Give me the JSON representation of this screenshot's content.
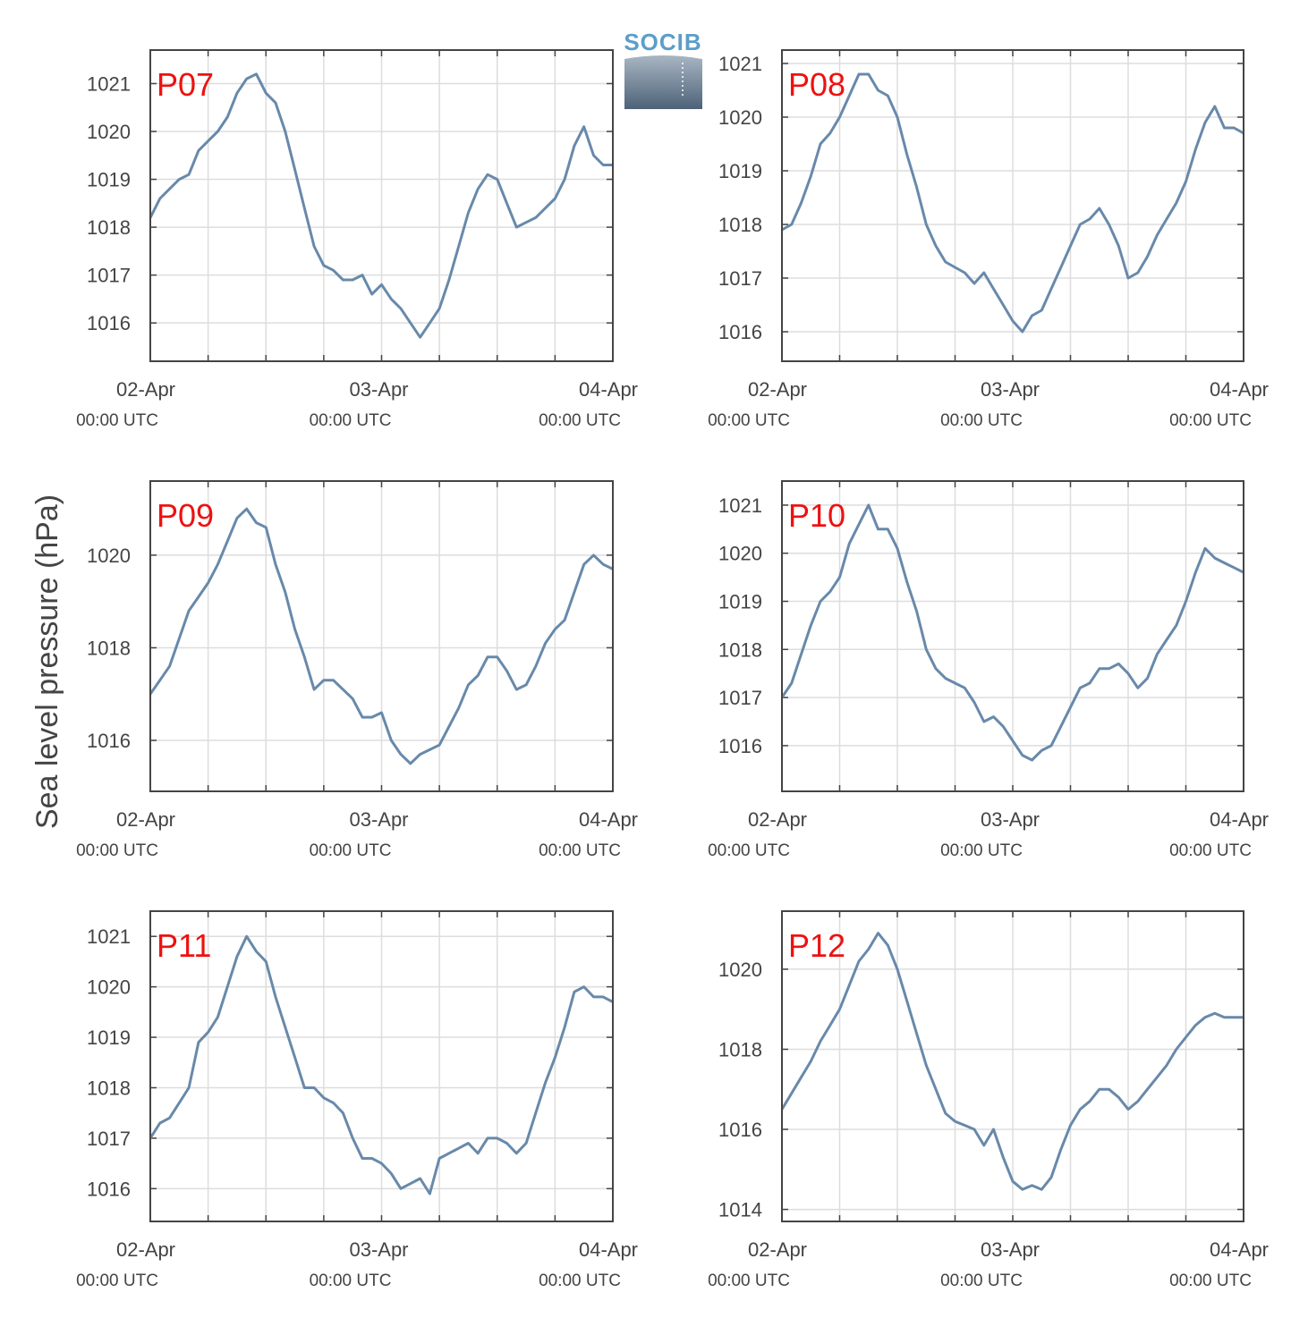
{
  "figure": {
    "ylabel": "Sea level pressure (hPa)",
    "label_color": "#ee1111",
    "line_color": "#6889aa",
    "logo": {
      "text": "SOCIB",
      "color": "#5b9ec9"
    }
  },
  "chart_data": [
    {
      "type": "line",
      "title": "P07",
      "ylim": [
        1015.2,
        1021.7
      ],
      "yticks": [
        1016,
        1017,
        1018,
        1019,
        1020,
        1021
      ],
      "xticks": [
        {
          "day": "02-Apr",
          "time": "00:00 UTC"
        },
        {
          "day": "03-Apr",
          "time": "00:00 UTC"
        },
        {
          "day": "04-Apr",
          "time": "00:00 UTC"
        }
      ],
      "xlim_hours": [
        0,
        48
      ],
      "grid": true,
      "series": [
        {
          "x": [
            0,
            1,
            2,
            3,
            4,
            5,
            6,
            7,
            8,
            9,
            10,
            11,
            12,
            13,
            14,
            15,
            16,
            17,
            18,
            19,
            20,
            21,
            22,
            23,
            24,
            25,
            26,
            27,
            28,
            29,
            30,
            31,
            32,
            33,
            34,
            35,
            36,
            37,
            38,
            39,
            40,
            41,
            42,
            43,
            44,
            45,
            46,
            47,
            48
          ],
          "y": [
            1018.2,
            1018.6,
            1018.8,
            1019.0,
            1019.1,
            1019.6,
            1019.8,
            1020.0,
            1020.3,
            1020.8,
            1021.1,
            1021.2,
            1020.8,
            1020.6,
            1020.0,
            1019.2,
            1018.4,
            1017.6,
            1017.2,
            1017.1,
            1016.9,
            1016.9,
            1017.0,
            1016.6,
            1016.8,
            1016.5,
            1016.3,
            1016.0,
            1015.7,
            1016.0,
            1016.3,
            1016.9,
            1017.6,
            1018.3,
            1018.8,
            1019.1,
            1019.0,
            1018.5,
            1018.0,
            1018.1,
            1018.2,
            1018.4,
            1018.6,
            1019.0,
            1019.7,
            1020.1,
            1019.5,
            1019.3,
            1019.3
          ]
        }
      ]
    },
    {
      "type": "line",
      "title": "P08",
      "ylim": [
        1015.45,
        1021.25
      ],
      "yticks": [
        1016,
        1017,
        1018,
        1019,
        1020,
        1021
      ],
      "xticks": [
        {
          "day": "02-Apr",
          "time": "00:00 UTC"
        },
        {
          "day": "03-Apr",
          "time": "00:00 UTC"
        },
        {
          "day": "04-Apr",
          "time": "00:00 UTC"
        }
      ],
      "xlim_hours": [
        0,
        48
      ],
      "grid": true,
      "series": [
        {
          "x": [
            0,
            1,
            2,
            3,
            4,
            5,
            6,
            7,
            8,
            9,
            10,
            11,
            12,
            13,
            14,
            15,
            16,
            17,
            18,
            19,
            20,
            21,
            22,
            23,
            24,
            25,
            26,
            27,
            28,
            29,
            30,
            31,
            32,
            33,
            34,
            35,
            36,
            37,
            38,
            39,
            40,
            41,
            42,
            43,
            44,
            45,
            46,
            47,
            48
          ],
          "y": [
            1017.9,
            1018.0,
            1018.4,
            1018.9,
            1019.5,
            1019.7,
            1020.0,
            1020.4,
            1020.8,
            1020.8,
            1020.5,
            1020.4,
            1020.0,
            1019.3,
            1018.7,
            1018.0,
            1017.6,
            1017.3,
            1017.2,
            1017.1,
            1016.9,
            1017.1,
            1016.8,
            1016.5,
            1016.2,
            1016.0,
            1016.3,
            1016.4,
            1016.8,
            1017.2,
            1017.6,
            1018.0,
            1018.1,
            1018.3,
            1018.0,
            1017.6,
            1017.0,
            1017.1,
            1017.4,
            1017.8,
            1018.1,
            1018.4,
            1018.8,
            1019.4,
            1019.9,
            1020.2,
            1019.8,
            1019.8,
            1019.7
          ]
        }
      ]
    },
    {
      "type": "line",
      "title": "P09",
      "ylim": [
        1014.9,
        1021.6
      ],
      "yticks": [
        1016,
        1018,
        1020
      ],
      "xticks": [
        {
          "day": "02-Apr",
          "time": "00:00 UTC"
        },
        {
          "day": "03-Apr",
          "time": "00:00 UTC"
        },
        {
          "day": "04-Apr",
          "time": "00:00 UTC"
        }
      ],
      "xlim_hours": [
        0,
        48
      ],
      "grid": true,
      "series": [
        {
          "x": [
            0,
            1,
            2,
            3,
            4,
            5,
            6,
            7,
            8,
            9,
            10,
            11,
            12,
            13,
            14,
            15,
            16,
            17,
            18,
            19,
            20,
            21,
            22,
            23,
            24,
            25,
            26,
            27,
            28,
            29,
            30,
            31,
            32,
            33,
            34,
            35,
            36,
            37,
            38,
            39,
            40,
            41,
            42,
            43,
            44,
            45,
            46,
            47,
            48
          ],
          "y": [
            1017.0,
            1017.3,
            1017.6,
            1018.2,
            1018.8,
            1019.1,
            1019.4,
            1019.8,
            1020.3,
            1020.8,
            1021.0,
            1020.7,
            1020.6,
            1019.8,
            1019.2,
            1018.4,
            1017.8,
            1017.1,
            1017.3,
            1017.3,
            1017.1,
            1016.9,
            1016.5,
            1016.5,
            1016.6,
            1016.0,
            1015.7,
            1015.5,
            1015.7,
            1015.8,
            1015.9,
            1016.3,
            1016.7,
            1017.2,
            1017.4,
            1017.8,
            1017.8,
            1017.5,
            1017.1,
            1017.2,
            1017.6,
            1018.1,
            1018.4,
            1018.6,
            1019.2,
            1019.8,
            1020.0,
            1019.8,
            1019.7
          ]
        }
      ]
    },
    {
      "type": "line",
      "title": "P10",
      "ylim": [
        1015.05,
        1021.5
      ],
      "yticks": [
        1016,
        1017,
        1018,
        1019,
        1020,
        1021
      ],
      "xticks": [
        {
          "day": "02-Apr",
          "time": "00:00 UTC"
        },
        {
          "day": "03-Apr",
          "time": "00:00 UTC"
        },
        {
          "day": "04-Apr",
          "time": "00:00 UTC"
        }
      ],
      "xlim_hours": [
        0,
        48
      ],
      "grid": true,
      "series": [
        {
          "x": [
            0,
            1,
            2,
            3,
            4,
            5,
            6,
            7,
            8,
            9,
            10,
            11,
            12,
            13,
            14,
            15,
            16,
            17,
            18,
            19,
            20,
            21,
            22,
            23,
            24,
            25,
            26,
            27,
            28,
            29,
            30,
            31,
            32,
            33,
            34,
            35,
            36,
            37,
            38,
            39,
            40,
            41,
            42,
            43,
            44,
            45,
            46,
            47,
            48
          ],
          "y": [
            1017.0,
            1017.3,
            1017.9,
            1018.5,
            1019.0,
            1019.2,
            1019.5,
            1020.2,
            1020.6,
            1021.0,
            1020.5,
            1020.5,
            1020.1,
            1019.4,
            1018.8,
            1018.0,
            1017.6,
            1017.4,
            1017.3,
            1017.2,
            1016.9,
            1016.5,
            1016.6,
            1016.4,
            1016.1,
            1015.8,
            1015.7,
            1015.9,
            1016.0,
            1016.4,
            1016.8,
            1017.2,
            1017.3,
            1017.6,
            1017.6,
            1017.7,
            1017.5,
            1017.2,
            1017.4,
            1017.9,
            1018.2,
            1018.5,
            1019.0,
            1019.6,
            1020.1,
            1019.9,
            1019.8,
            1019.7,
            1019.6
          ]
        }
      ]
    },
    {
      "type": "line",
      "title": "P11",
      "ylim": [
        1015.35,
        1021.5
      ],
      "yticks": [
        1016,
        1017,
        1018,
        1019,
        1020,
        1021
      ],
      "xticks": [
        {
          "day": "02-Apr",
          "time": "00:00 UTC"
        },
        {
          "day": "03-Apr",
          "time": "00:00 UTC"
        },
        {
          "day": "04-Apr",
          "time": "00:00 UTC"
        }
      ],
      "xlim_hours": [
        0,
        48
      ],
      "grid": true,
      "series": [
        {
          "x": [
            0,
            1,
            2,
            3,
            4,
            5,
            6,
            7,
            8,
            9,
            10,
            11,
            12,
            13,
            14,
            15,
            16,
            17,
            18,
            19,
            20,
            21,
            22,
            23,
            24,
            25,
            26,
            27,
            28,
            29,
            30,
            31,
            32,
            33,
            34,
            35,
            36,
            37,
            38,
            39,
            40,
            41,
            42,
            43,
            44,
            45,
            46,
            47,
            48
          ],
          "y": [
            1017.0,
            1017.3,
            1017.4,
            1017.7,
            1018.0,
            1018.9,
            1019.1,
            1019.4,
            1020.0,
            1020.6,
            1021.0,
            1020.7,
            1020.5,
            1019.8,
            1019.2,
            1018.6,
            1018.0,
            1018.0,
            1017.8,
            1017.7,
            1017.5,
            1017.0,
            1016.6,
            1016.6,
            1016.5,
            1016.3,
            1016.0,
            1016.1,
            1016.2,
            1015.9,
            1016.6,
            1016.7,
            1016.8,
            1016.9,
            1016.7,
            1017.0,
            1017.0,
            1016.9,
            1016.7,
            1016.9,
            1017.5,
            1018.1,
            1018.6,
            1019.2,
            1019.9,
            1020.0,
            1019.8,
            1019.8,
            1019.7
          ]
        }
      ]
    },
    {
      "type": "line",
      "title": "P12",
      "ylim": [
        1013.7,
        1021.45
      ],
      "yticks": [
        1014,
        1016,
        1018,
        1020
      ],
      "xticks": [
        {
          "day": "02-Apr",
          "time": "00:00 UTC"
        },
        {
          "day": "03-Apr",
          "time": "00:00 UTC"
        },
        {
          "day": "04-Apr",
          "time": "00:00 UTC"
        }
      ],
      "xlim_hours": [
        0,
        48
      ],
      "grid": true,
      "series": [
        {
          "x": [
            0,
            1,
            2,
            3,
            4,
            5,
            6,
            7,
            8,
            9,
            10,
            11,
            12,
            13,
            14,
            15,
            16,
            17,
            18,
            19,
            20,
            21,
            22,
            23,
            24,
            25,
            26,
            27,
            28,
            29,
            30,
            31,
            32,
            33,
            34,
            35,
            36,
            37,
            38,
            39,
            40,
            41,
            42,
            43,
            44,
            45,
            46,
            47,
            48
          ],
          "y": [
            1016.5,
            1016.9,
            1017.3,
            1017.7,
            1018.2,
            1018.6,
            1019.0,
            1019.6,
            1020.2,
            1020.5,
            1020.9,
            1020.6,
            1020.0,
            1019.2,
            1018.4,
            1017.6,
            1017.0,
            1016.4,
            1016.2,
            1016.1,
            1016.0,
            1015.6,
            1016.0,
            1015.3,
            1014.7,
            1014.5,
            1014.6,
            1014.5,
            1014.8,
            1015.5,
            1016.1,
            1016.5,
            1016.7,
            1017.0,
            1017.0,
            1016.8,
            1016.5,
            1016.7,
            1017.0,
            1017.3,
            1017.6,
            1018.0,
            1018.3,
            1018.6,
            1018.8,
            1018.9,
            1018.8,
            1018.8,
            1018.8
          ]
        }
      ]
    }
  ]
}
